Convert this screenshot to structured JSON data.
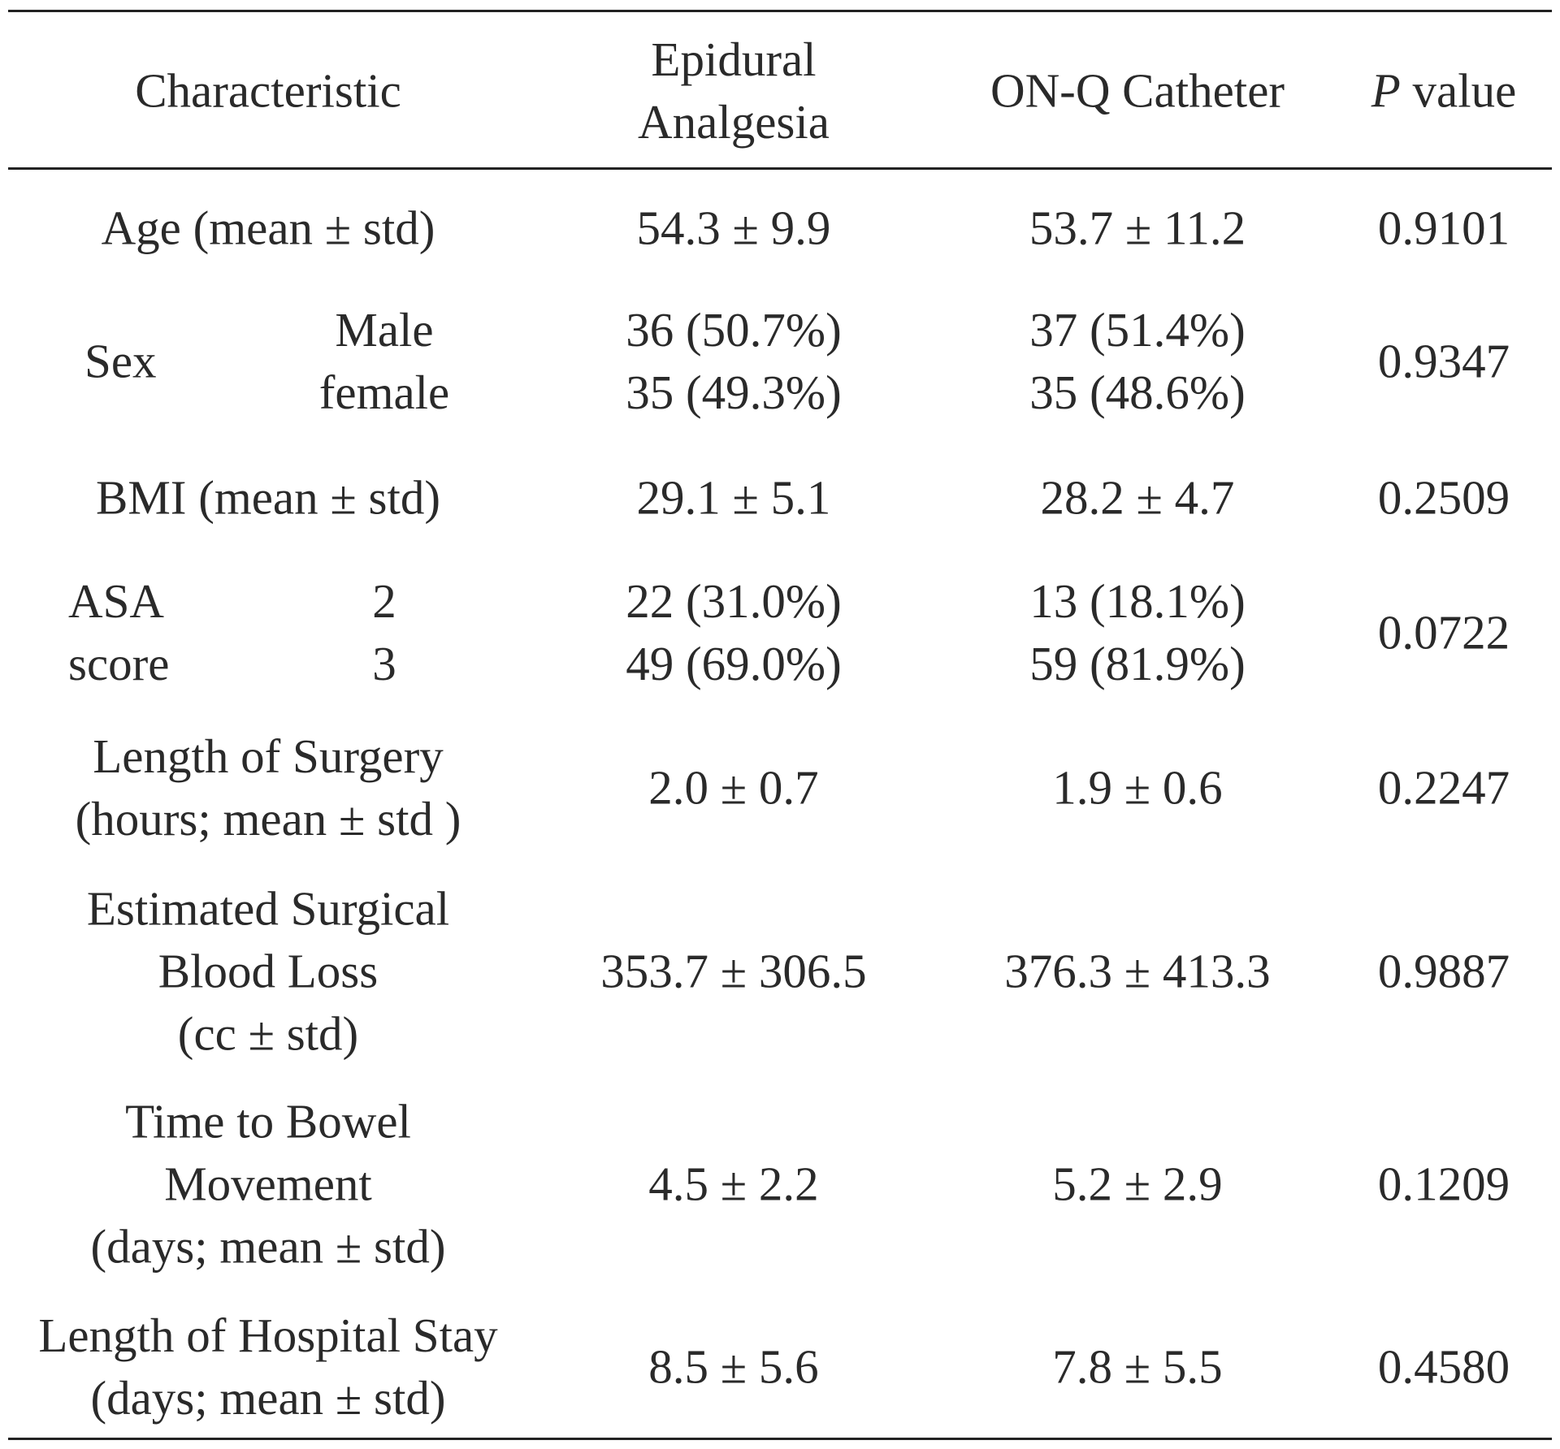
{
  "table": {
    "headers": {
      "characteristic": "Characteristic",
      "epidural": [
        "Epidural",
        "Analgesia"
      ],
      "onq": "ON-Q Catheter",
      "pvalue_italic": "P",
      "pvalue_rest": " value"
    },
    "rows": {
      "age": {
        "label": "Age (mean ± std)",
        "epidural": "54.3 ± 9.9",
        "onq": "53.7 ± 11.2",
        "p": "0.9101"
      },
      "sex": {
        "label": "Sex",
        "sub": [
          "Male",
          "female"
        ],
        "epidural": [
          "36 (50.7%)",
          "35 (49.3%)"
        ],
        "onq": [
          "37 (51.4%)",
          "35 (48.6%)"
        ],
        "p": "0.9347"
      },
      "bmi": {
        "label": "BMI (mean ± std)",
        "epidural": "29.1 ± 5.1",
        "onq": "28.2 ± 4.7",
        "p": "0.2509"
      },
      "asa": {
        "label": [
          "ASA",
          "score"
        ],
        "sub": [
          "2",
          "3"
        ],
        "epidural": [
          "22 (31.0%)",
          "49 (69.0%)"
        ],
        "onq": [
          "13 (18.1%)",
          "59 (81.9%)"
        ],
        "p": "0.0722"
      },
      "surgery_length": {
        "label": [
          "Length of Surgery",
          "(hours; mean ± std )"
        ],
        "epidural": "2.0 ± 0.7",
        "onq": "1.9 ± 0.6",
        "p": "0.2247"
      },
      "blood_loss": {
        "label": [
          "Estimated Surgical",
          "Blood Loss",
          "(cc ± std)"
        ],
        "epidural": "353.7 ± 306.5",
        "onq": "376.3 ± 413.3",
        "p": "0.9887"
      },
      "bowel": {
        "label": [
          "Time to Bowel",
          "Movement",
          "(days; mean ± std)"
        ],
        "epidural": "4.5 ± 2.2",
        "onq": "5.2 ± 2.9",
        "p": "0.1209"
      },
      "stay": {
        "label": [
          "Length of Hospital Stay",
          "(days; mean ± std)"
        ],
        "epidural": "8.5 ± 5.6",
        "onq": "7.8 ± 5.5",
        "p": "0.4580"
      }
    }
  }
}
